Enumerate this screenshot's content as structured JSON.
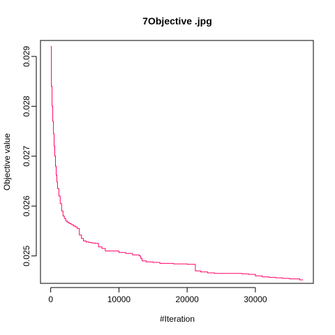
{
  "chart_data": {
    "type": "line",
    "title": "7Objective .jpg",
    "xlabel": "#Iteration",
    "ylabel": "Objective value",
    "xlim": [
      -1500,
      38500
    ],
    "ylim": [
      0.02445,
      0.02932
    ],
    "x_ticks": [
      0,
      10000,
      20000,
      30000
    ],
    "x_tick_labels": [
      "0",
      "10000",
      "20000",
      "30000"
    ],
    "y_ticks": [
      0.025,
      0.026,
      0.027,
      0.028,
      0.029
    ],
    "y_tick_labels": [
      "0.025",
      "0.026",
      "0.027",
      "0.028",
      "0.029"
    ],
    "grid": false,
    "legend": "none",
    "series": [
      {
        "color": "#ff0066",
        "x": [
          0,
          100,
          200,
          300,
          400,
          500,
          600,
          700,
          800,
          900,
          1000,
          1200,
          1400,
          1600,
          1800,
          2000,
          2200,
          2400,
          2600,
          2800,
          3000,
          3300,
          3600,
          3900,
          4200,
          4500,
          4800,
          5200,
          5600,
          6000,
          6500,
          7000,
          7500,
          8000,
          9000,
          10000,
          11000,
          12000,
          13000,
          13200,
          13400,
          14000,
          15000,
          16000,
          18000,
          20000,
          21000,
          21200,
          21500,
          22000,
          23000,
          24000,
          26000,
          28000,
          29000,
          30000,
          31000,
          32000,
          33000,
          34000,
          35000,
          36000,
          36500,
          37000
        ],
        "y": [
          0.0292,
          0.0284,
          0.028,
          0.0277,
          0.02745,
          0.0272,
          0.027,
          0.0268,
          0.02662,
          0.02648,
          0.02635,
          0.0262,
          0.02605,
          0.0259,
          0.0258,
          0.02575,
          0.0257,
          0.02568,
          0.02566,
          0.02565,
          0.02563,
          0.0256,
          0.02558,
          0.02555,
          0.02542,
          0.02535,
          0.0253,
          0.02528,
          0.02527,
          0.02526,
          0.02525,
          0.02518,
          0.02515,
          0.0251,
          0.0251,
          0.02507,
          0.02505,
          0.02502,
          0.025,
          0.02495,
          0.0249,
          0.02488,
          0.02487,
          0.02485,
          0.02484,
          0.02483,
          0.02483,
          0.0247,
          0.0247,
          0.02468,
          0.02466,
          0.02465,
          0.02465,
          0.02464,
          0.02463,
          0.0246,
          0.02458,
          0.02457,
          0.02456,
          0.02455,
          0.02454,
          0.02454,
          0.02452,
          0.02452
        ]
      }
    ]
  }
}
